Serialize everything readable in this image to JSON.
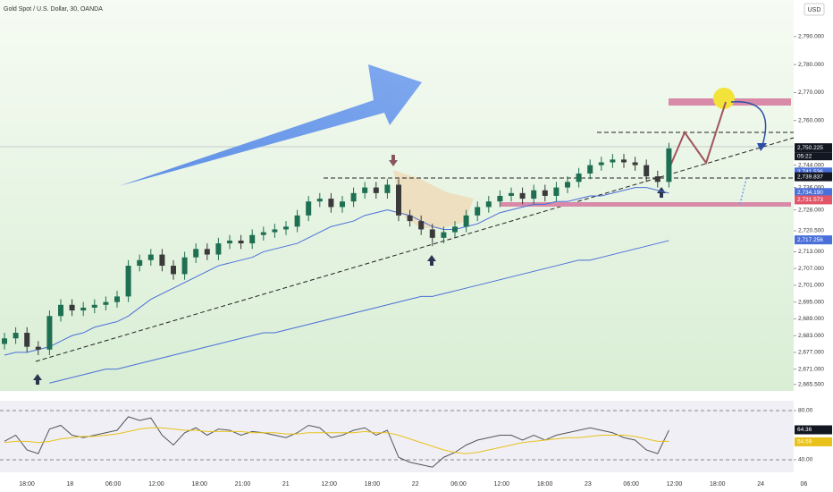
{
  "header": {
    "title": "Gold Spot / U.S. Dollar, 30, OANDA",
    "currency": "USD"
  },
  "chart_data": [
    {
      "type": "candlestick",
      "time_labels": [
        "18:00",
        "18",
        "06:00",
        "12:00",
        "18:00",
        "21:00",
        "21",
        "12:00",
        "18:00",
        "22",
        "06:00",
        "12:00",
        "18:00",
        "23",
        "06:00",
        "12:00",
        "18:00",
        "24",
        "06"
      ],
      "open": [
        2680,
        2682,
        2684,
        2679,
        2678,
        2690,
        2694,
        2692,
        2693,
        2694,
        2695,
        2697,
        2708,
        2710,
        2712,
        2708,
        2705,
        2711,
        2714,
        2712,
        2716,
        2717,
        2716,
        2719,
        2720,
        2721,
        2722,
        2726,
        2731,
        2732,
        2729,
        2731,
        2734,
        2736,
        2734,
        2737,
        2726,
        2724,
        2721,
        2718,
        2720,
        2722,
        2726,
        2729,
        2731,
        2733,
        2734,
        2732,
        2735,
        2733,
        2736,
        2738,
        2741,
        2744,
        2745,
        2746,
        2745,
        2744,
        2740,
        2738
      ],
      "high": [
        2684,
        2686,
        2686,
        2681,
        2692,
        2696,
        2696,
        2695,
        2696,
        2697,
        2699,
        2710,
        2712,
        2714,
        2714,
        2710,
        2713,
        2716,
        2716,
        2718,
        2719,
        2719,
        2721,
        2722,
        2723,
        2724,
        2728,
        2733,
        2734,
        2734,
        2733,
        2736,
        2738,
        2738,
        2739,
        2739,
        2728,
        2726,
        2723,
        2722,
        2724,
        2728,
        2731,
        2733,
        2735,
        2736,
        2736,
        2737,
        2737,
        2738,
        2740,
        2743,
        2746,
        2747,
        2748,
        2748,
        2747,
        2746,
        2742,
        2752
      ],
      "low": [
        2678,
        2680,
        2677,
        2676,
        2676,
        2688,
        2690,
        2690,
        2691,
        2692,
        2693,
        2695,
        2706,
        2708,
        2706,
        2703,
        2703,
        2709,
        2710,
        2710,
        2714,
        2714,
        2714,
        2717,
        2718,
        2719,
        2720,
        2724,
        2729,
        2727,
        2727,
        2729,
        2732,
        2732,
        2732,
        2724,
        2722,
        2719,
        2715,
        2716,
        2718,
        2720,
        2724,
        2727,
        2729,
        2731,
        2730,
        2730,
        2731,
        2731,
        2734,
        2736,
        2739,
        2742,
        2743,
        2743,
        2742,
        2738,
        2736,
        2736
      ],
      "close": [
        2682,
        2684,
        2679,
        2678,
        2690,
        2694,
        2692,
        2693,
        2694,
        2695,
        2697,
        2708,
        2710,
        2712,
        2708,
        2705,
        2711,
        2714,
        2712,
        2716,
        2717,
        2716,
        2719,
        2720,
        2721,
        2722,
        2726,
        2731,
        2732,
        2729,
        2731,
        2734,
        2736,
        2734,
        2737,
        2726,
        2724,
        2721,
        2718,
        2720,
        2722,
        2726,
        2729,
        2731,
        2733,
        2734,
        2732,
        2735,
        2733,
        2736,
        2738,
        2741,
        2744,
        2745,
        2746,
        2745,
        2744,
        2740,
        2738,
        2750
      ],
      "up_color": "#1f6f52",
      "down_color": "#3a3a3a",
      "lines": [
        {
          "color": "#4a6fd8",
          "values": [
            2676,
            2677,
            2677,
            2678,
            2679,
            2681,
            2683,
            2684,
            2686,
            2687,
            2688,
            2690,
            2693,
            2696,
            2698,
            2700,
            2702,
            2704,
            2706,
            2708,
            2709,
            2710,
            2711,
            2713,
            2714,
            2715,
            2716,
            2718,
            2720,
            2722,
            2723,
            2724,
            2726,
            2727,
            2728,
            2727,
            2726,
            2724,
            2722,
            2721,
            2721,
            2722,
            2723,
            2725,
            2727,
            2728,
            2729,
            2730,
            2730,
            2731,
            2731,
            2732,
            2733,
            2733,
            2734,
            2735,
            2736,
            2736,
            2735,
            2734
          ]
        },
        {
          "color": "#4a6fd8",
          "values": [
            null,
            null,
            null,
            null,
            2666,
            2667,
            2668,
            2669,
            2670,
            2671,
            2671,
            2672,
            2673,
            2674,
            2675,
            2676,
            2677,
            2678,
            2679,
            2680,
            2681,
            2682,
            2683,
            2684,
            2684,
            2685,
            2686,
            2687,
            2688,
            2689,
            2690,
            2691,
            2692,
            2693,
            2694,
            2695,
            2696,
            2697,
            2697,
            2698,
            2699,
            2700,
            2701,
            2702,
            2703,
            2704,
            2705,
            2706,
            2707,
            2708,
            2709,
            2710,
            2710,
            2711,
            2712,
            2713,
            2714,
            2715,
            2716,
            2717
          ]
        }
      ],
      "ylim": [
        2663.2,
        2803.1
      ],
      "yticks": [
        {
          "value": 2790,
          "label": "2,790.000"
        },
        {
          "value": 2780,
          "label": "2,780.000"
        },
        {
          "value": 2770,
          "label": "2,770.000"
        },
        {
          "value": 2760,
          "label": "2,760.000"
        },
        {
          "value": 2744,
          "label": "2,744.000"
        },
        {
          "value": 2736,
          "label": "2,736.000"
        },
        {
          "value": 2728,
          "label": "2,728.000"
        },
        {
          "value": 2720.5,
          "label": "2,720.500"
        },
        {
          "value": 2713,
          "label": "2,713.000"
        },
        {
          "value": 2707,
          "label": "2,707.000"
        },
        {
          "value": 2701,
          "label": "2,701.000"
        },
        {
          "value": 2695,
          "label": "2,695.000"
        },
        {
          "value": 2689,
          "label": "2,689.000"
        },
        {
          "value": 2683,
          "label": "2,683.000"
        },
        {
          "value": 2677,
          "label": "2,677.000"
        },
        {
          "value": 2671,
          "label": "2,671.000"
        },
        {
          "value": 2665.5,
          "label": "2,665.500"
        }
      ],
      "price_tags": [
        {
          "value": 2750.225,
          "label": "2,750.225",
          "color": "#131722"
        },
        {
          "value": 2741.536,
          "label": "2,741.536",
          "color": "#4a6fd8"
        },
        {
          "value": 2739.837,
          "label": "2,739.837",
          "color": "#131722"
        },
        {
          "value": 2734.19,
          "label": "2,734.190",
          "color": "#4a6fd8"
        },
        {
          "value": 2731.573,
          "label": "2,731.573",
          "color": "#e05668"
        },
        {
          "value": 2717.256,
          "label": "2,717.256",
          "color": "#4a6fd8"
        }
      ],
      "countdown": "05:22"
    },
    {
      "type": "line",
      "lines": [
        {
          "color": "#555555",
          "values": [
            55,
            60,
            48,
            45,
            65,
            68,
            60,
            58,
            60,
            62,
            64,
            75,
            72,
            74,
            60,
            52,
            62,
            66,
            60,
            65,
            64,
            60,
            63,
            62,
            60,
            58,
            62,
            68,
            66,
            58,
            60,
            64,
            66,
            60,
            64,
            42,
            38,
            36,
            34,
            42,
            46,
            52,
            56,
            58,
            60,
            60,
            56,
            60,
            56,
            60,
            62,
            64,
            66,
            64,
            62,
            58,
            56,
            48,
            45,
            64
          ]
        },
        {
          "color": "#e8c21a",
          "values": [
            54,
            55,
            55,
            54,
            55,
            57,
            58,
            59,
            59,
            60,
            61,
            63,
            65,
            66,
            66,
            65,
            64,
            64,
            63,
            63,
            63,
            63,
            62,
            62,
            62,
            61,
            61,
            62,
            62,
            62,
            62,
            62,
            63,
            62,
            62,
            60,
            57,
            54,
            51,
            48,
            46,
            45,
            46,
            48,
            50,
            52,
            54,
            55,
            56,
            57,
            58,
            58,
            59,
            60,
            60,
            60,
            59,
            57,
            55,
            55
          ]
        }
      ],
      "ylim": [
        29.8,
        88
      ],
      "yticks": [
        {
          "value": 80,
          "label": "80.00"
        },
        {
          "value": 40,
          "label": "40.00"
        }
      ],
      "price_tags": [
        {
          "value": 64.36,
          "label": "64.36",
          "color": "#131722"
        },
        {
          "value": 54.59,
          "label": "54.59",
          "color": "#e8c21a"
        }
      ]
    }
  ]
}
